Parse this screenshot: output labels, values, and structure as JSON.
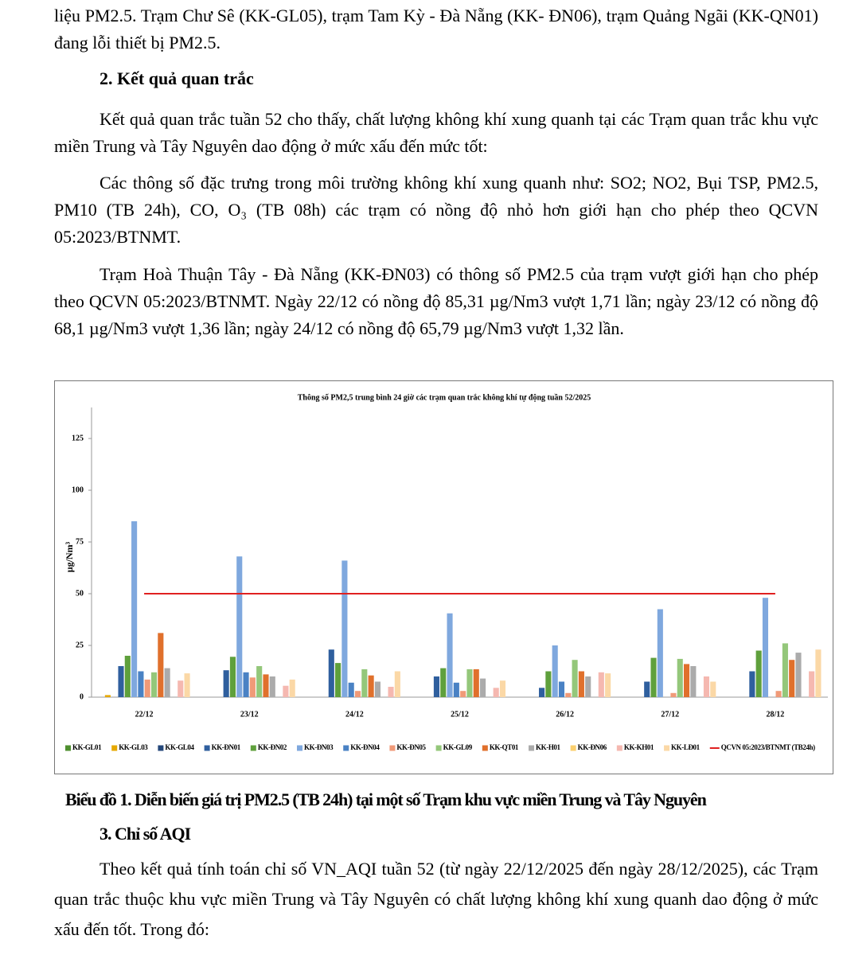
{
  "document": {
    "p_intro": "liệu PM2.5. Trạm Chư Sê (KK-GL05), trạm Tam Kỳ - Đà Nẵng (KK- ĐN06), trạm Quảng Ngãi (KK-QN01) đang lỗi thiết bị PM2.5.",
    "heading_results": "2. Kết quả quan trắc",
    "p_results_1": "Kết quả quan trắc tuần 52 cho thấy, chất lượng không khí xung quanh tại các Trạm quan trắc khu vực miền Trung và Tây Nguyên dao động ở mức xấu đến mức tốt:",
    "p_results_2": "Các thông số đặc trưng trong môi trường không khí xung quanh như: SO2; NO2, Bụi TSP, PM2.5, PM10 (TB 24h), CO, O₃ (TB 08h) các trạm có nồng độ nhỏ hơn giới hạn cho phép theo QCVN 05:2023/BTNMT.",
    "p_results_3": "Trạm Hoà Thuận Tây - Đà Nẵng (KK-ĐN03) có thông số PM2.5 của trạm vượt giới hạn cho phép theo QCVN 05:2023/BTNMT. Ngày 22/12 có nồng độ 85,31 µg/Nm3 vượt 1,71 lần; ngày 23/12 có nồng độ 68,1 µg/Nm3 vượt 1,36 lần; ngày 24/12 có nồng độ 65,79 µg/Nm3 vượt 1,32 lần.",
    "caption": "Biểu đồ 1. Diễn biến giá trị PM2.5 (TB 24h) tại một số Trạm khu vực miền Trung và Tây Nguyên",
    "heading_aqi": "3. Chỉ số AQI",
    "p_aqi": "Theo kết quả tính toán chỉ số VN_AQI tuần 52 (từ ngày 22/12/2025 đến ngày 28/12/2025), các Trạm quan trắc thuộc khu vực miền Trung và Tây Nguyên có chất lượng không khí xung quanh dao động ở mức xấu đến tốt. Trong đó:"
  },
  "chart_data": {
    "type": "bar",
    "title": "Thông số PM2,5 trung bình 24 giờ các trạm quan trắc không khí tự động tuần 52/2025",
    "y_label": "µg/Nm³",
    "categories": [
      "22/12",
      "23/12",
      "24/12",
      "25/12",
      "26/12",
      "27/12",
      "28/12"
    ],
    "ylim": [
      0,
      140
    ],
    "yticks": [
      0,
      25,
      50,
      75,
      100,
      125
    ],
    "series": [
      {
        "name": "KK-GL01",
        "color": "#4e8f2f",
        "values": [
          null,
          null,
          null,
          null,
          null,
          null,
          null
        ]
      },
      {
        "name": "KK-GL03",
        "color": "#e6a800",
        "values": [
          1,
          null,
          null,
          null,
          null,
          null,
          null
        ]
      },
      {
        "name": "KK-GL04",
        "color": "#24477a",
        "values": [
          null,
          null,
          null,
          null,
          null,
          null,
          null
        ]
      },
      {
        "name": "KK-ĐN01",
        "color": "#2f5f9e",
        "values": [
          15,
          13,
          23,
          10,
          4.5,
          7.5,
          12.5
        ]
      },
      {
        "name": "KK-ĐN02",
        "color": "#5fa03c",
        "values": [
          20,
          19.5,
          16.5,
          14,
          12.5,
          19,
          22.5
        ]
      },
      {
        "name": "KK-ĐN03",
        "color": "#7fa8de",
        "values": [
          85,
          68,
          66,
          40.5,
          25,
          42.5,
          48
        ]
      },
      {
        "name": "KK-ĐN04",
        "color": "#4a82c4",
        "values": [
          12.5,
          12,
          7,
          7,
          7.5,
          null,
          null
        ]
      },
      {
        "name": "KK-ĐN05",
        "color": "#f09a78",
        "values": [
          8.5,
          9.5,
          3,
          3,
          2,
          2,
          3
        ]
      },
      {
        "name": "KK-GL09",
        "color": "#94c77a",
        "values": [
          12,
          15,
          13.5,
          13.5,
          18,
          18.5,
          26
        ]
      },
      {
        "name": "KK-QT01",
        "color": "#e0702c",
        "values": [
          31,
          11,
          10.5,
          13.5,
          12.5,
          16,
          18
        ]
      },
      {
        "name": "KK-H01",
        "color": "#ababab",
        "values": [
          14,
          10,
          7.5,
          9,
          10,
          15,
          21.5
        ]
      },
      {
        "name": "KK-ĐN06",
        "color": "#fbcf6e",
        "values": [
          null,
          null,
          null,
          null,
          null,
          null,
          null
        ]
      },
      {
        "name": "KK-KH01",
        "color": "#f5b8b0",
        "values": [
          8,
          5.5,
          5,
          4.5,
          12,
          10,
          12.5
        ]
      },
      {
        "name": "KK-LĐ01",
        "color": "#fbd8a6",
        "values": [
          11.5,
          8.5,
          12.5,
          8,
          11.5,
          7.5,
          23
        ]
      },
      {
        "name": "QCVN 05:2023/BTNMT (TB24h)",
        "color": "#e02020",
        "type": "line",
        "values": [
          50,
          50,
          50,
          50,
          50,
          50,
          50
        ]
      }
    ]
  }
}
